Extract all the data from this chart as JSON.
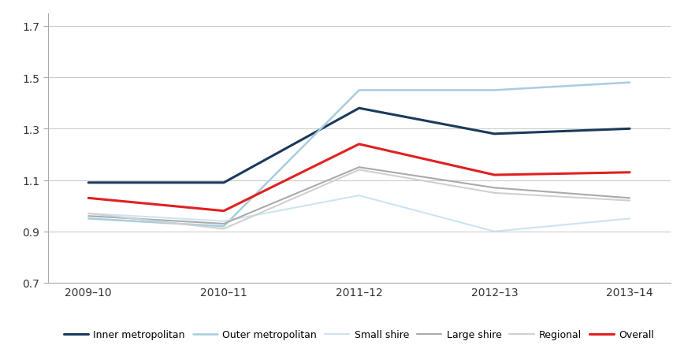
{
  "x_labels": [
    "2009–10",
    "2010–11",
    "2011–12",
    "2012–13",
    "2013–14"
  ],
  "series": {
    "Inner metropolitan": {
      "values": [
        1.09,
        1.09,
        1.38,
        1.28,
        1.3
      ],
      "color": "#1a3a5c",
      "linewidth": 2.2,
      "linestyle": "-"
    },
    "Outer metropolitan": {
      "values": [
        0.95,
        0.92,
        1.45,
        1.45,
        1.48
      ],
      "color": "#a8cce0",
      "linewidth": 1.8,
      "linestyle": "-"
    },
    "Small shire": {
      "values": [
        0.97,
        0.94,
        1.04,
        0.9,
        0.95
      ],
      "color": "#cce4f0",
      "linewidth": 1.5,
      "linestyle": "-"
    },
    "Large shire": {
      "values": [
        0.96,
        0.93,
        1.15,
        1.07,
        1.03
      ],
      "color": "#aaaaaa",
      "linewidth": 1.5,
      "linestyle": "-"
    },
    "Regional": {
      "values": [
        0.97,
        0.91,
        1.14,
        1.05,
        1.02
      ],
      "color": "#d0d0d0",
      "linewidth": 1.5,
      "linestyle": "-"
    },
    "Overall": {
      "values": [
        1.03,
        0.98,
        1.24,
        1.12,
        1.13
      ],
      "color": "#e02020",
      "linewidth": 2.2,
      "linestyle": "-"
    }
  },
  "ylim": [
    0.7,
    1.75
  ],
  "yticks": [
    0.7,
    0.9,
    1.1,
    1.3,
    1.5,
    1.7
  ],
  "background_color": "#ffffff",
  "grid_color": "#cccccc",
  "legend_order": [
    "Inner metropolitan",
    "Outer metropolitan",
    "Small shire",
    "Large shire",
    "Regional",
    "Overall"
  ]
}
